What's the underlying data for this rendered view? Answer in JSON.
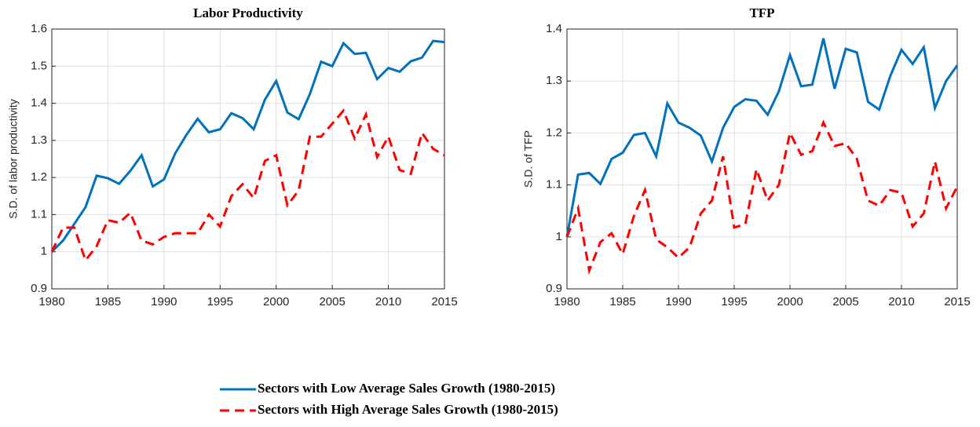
{
  "chart_data": [
    {
      "type": "line",
      "title": "Labor Productivity",
      "y_label": "S.D. of labor productivity",
      "x": [
        1980,
        1981,
        1982,
        1983,
        1984,
        1985,
        1986,
        1987,
        1988,
        1989,
        1990,
        1991,
        1992,
        1993,
        1994,
        1995,
        1996,
        1997,
        1998,
        1999,
        2000,
        2001,
        2002,
        2003,
        2004,
        2005,
        2006,
        2007,
        2008,
        2009,
        2010,
        2011,
        2012,
        2013,
        2014,
        2015
      ],
      "xlim": [
        1980,
        2015
      ],
      "xticks": [
        1980,
        1985,
        1990,
        1995,
        2000,
        2005,
        2010,
        2015
      ],
      "ylim": [
        0.9,
        1.6
      ],
      "yticks": [
        0.9,
        1,
        1.1,
        1.2,
        1.3,
        1.4,
        1.5,
        1.6
      ],
      "grid": true,
      "legend": "bottom",
      "series": [
        {
          "name": "Sectors with Low Average Sales Growth (1980-2015)",
          "color": "#0072bd",
          "style": "solid",
          "values": [
            1.0,
            1.03,
            1.075,
            1.12,
            1.205,
            1.198,
            1.183,
            1.218,
            1.26,
            1.176,
            1.195,
            1.265,
            1.315,
            1.358,
            1.322,
            1.33,
            1.373,
            1.36,
            1.33,
            1.41,
            1.46,
            1.375,
            1.357,
            1.425,
            1.512,
            1.5,
            1.562,
            1.533,
            1.536,
            1.465,
            1.495,
            1.485,
            1.513,
            1.523,
            1.568,
            1.565
          ]
        },
        {
          "name": "Sectors with High Average Sales Growth (1980-2015)",
          "color": "#ff0000",
          "style": "dashed",
          "values": [
            1.0,
            1.065,
            1.065,
            0.977,
            1.015,
            1.085,
            1.078,
            1.105,
            1.03,
            1.02,
            1.04,
            1.05,
            1.05,
            1.05,
            1.1,
            1.068,
            1.15,
            1.182,
            1.145,
            1.245,
            1.26,
            1.125,
            1.165,
            1.31,
            1.31,
            1.345,
            1.38,
            1.305,
            1.37,
            1.255,
            1.31,
            1.22,
            1.21,
            1.32,
            1.277,
            1.26
          ]
        }
      ]
    },
    {
      "type": "line",
      "title": "TFP",
      "y_label": "S.D. of TFP",
      "x": [
        1980,
        1981,
        1982,
        1983,
        1984,
        1985,
        1986,
        1987,
        1988,
        1989,
        1990,
        1991,
        1992,
        1993,
        1994,
        1995,
        1996,
        1997,
        1998,
        1999,
        2000,
        2001,
        2002,
        2003,
        2004,
        2005,
        2006,
        2007,
        2008,
        2009,
        2010,
        2011,
        2012,
        2013,
        2014,
        2015
      ],
      "xlim": [
        1980,
        2015
      ],
      "xticks": [
        1980,
        1985,
        1990,
        1995,
        2000,
        2005,
        2010,
        2015
      ],
      "ylim": [
        0.9,
        1.4
      ],
      "yticks": [
        0.9,
        1,
        1.1,
        1.2,
        1.3,
        1.4
      ],
      "grid": true,
      "series": [
        {
          "name": "Sectors with Low Average Sales Growth (1980-2015)",
          "color": "#0072bd",
          "style": "solid",
          "values": [
            1.0,
            1.12,
            1.123,
            1.102,
            1.15,
            1.162,
            1.196,
            1.2,
            1.155,
            1.257,
            1.22,
            1.21,
            1.195,
            1.145,
            1.21,
            1.25,
            1.265,
            1.262,
            1.235,
            1.28,
            1.35,
            1.29,
            1.293,
            1.382,
            1.285,
            1.362,
            1.355,
            1.26,
            1.245,
            1.31,
            1.36,
            1.333,
            1.365,
            1.248,
            1.3,
            1.33
          ]
        },
        {
          "name": "Sectors with High Average Sales Growth (1980-2015)",
          "color": "#ff0000",
          "style": "dashed",
          "values": [
            1.0,
            1.055,
            0.935,
            0.99,
            1.007,
            0.967,
            1.04,
            1.09,
            0.995,
            0.98,
            0.96,
            0.98,
            1.045,
            1.07,
            1.155,
            1.018,
            1.025,
            1.13,
            1.07,
            1.1,
            1.2,
            1.158,
            1.165,
            1.22,
            1.175,
            1.18,
            1.15,
            1.07,
            1.06,
            1.09,
            1.085,
            1.02,
            1.045,
            1.145,
            1.055,
            1.097
          ]
        }
      ]
    }
  ]
}
